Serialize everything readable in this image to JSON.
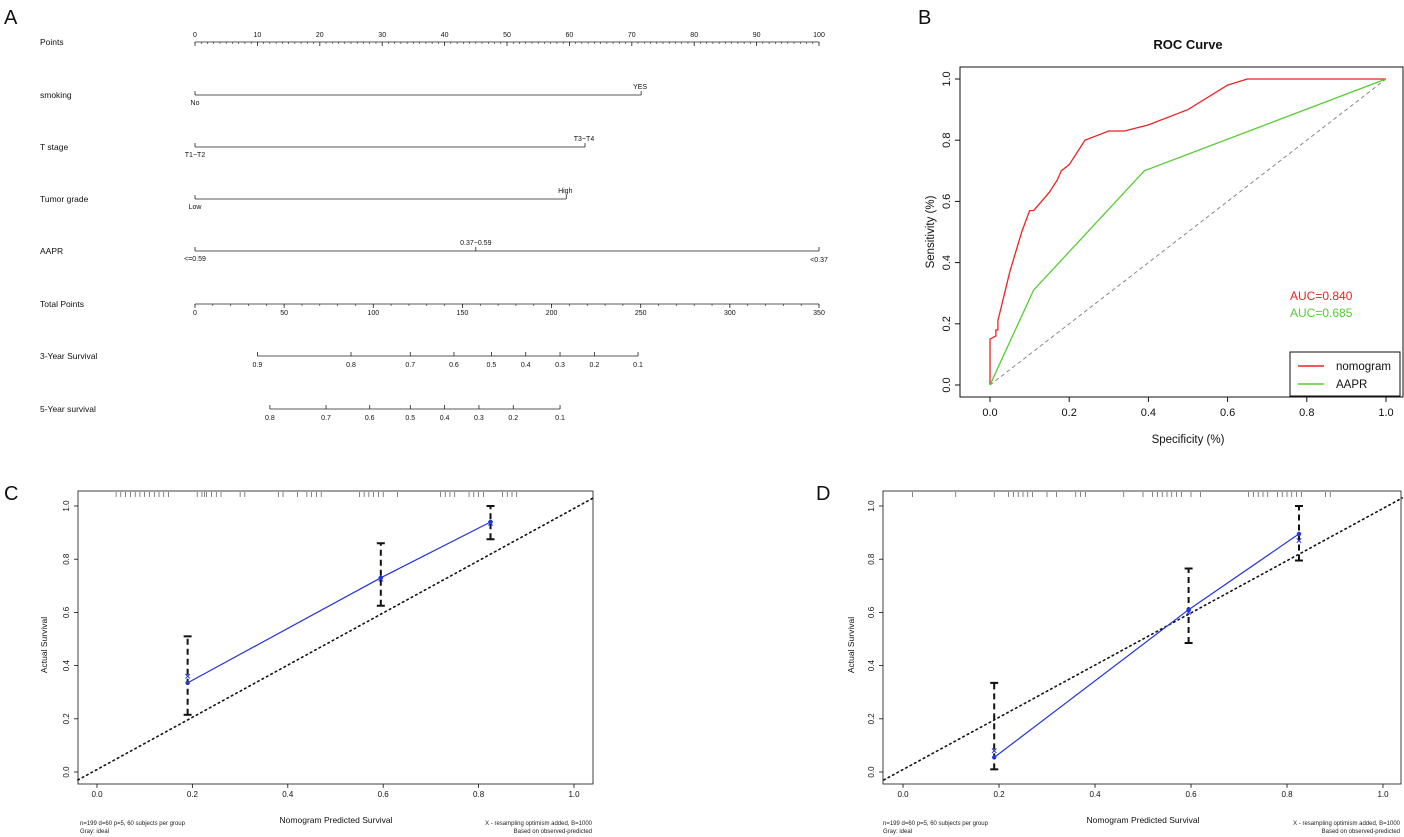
{
  "panels": {
    "a": "A",
    "b": "B",
    "c": "C",
    "d": "D"
  },
  "nomogram": {
    "rows": [
      {
        "label": "Points",
        "type": "scale",
        "ticks": [
          "0",
          "10",
          "20",
          "30",
          "40",
          "50",
          "60",
          "70",
          "80",
          "90",
          "100"
        ],
        "tick_values": [
          0,
          10,
          20,
          30,
          40,
          50,
          60,
          70,
          80,
          90,
          100
        ],
        "minor_step": 1,
        "range": [
          0,
          100
        ]
      },
      {
        "label": "smoking",
        "type": "var",
        "low": "No",
        "high": "YES",
        "low_points": 0,
        "high_points": 71.5
      },
      {
        "label": "T stage",
        "type": "var",
        "low": "T1~T2",
        "high": "T3~T4",
        "low_points": 0,
        "high_points": 62.5
      },
      {
        "label": "Tumor grade",
        "type": "var",
        "low": "Low",
        "high": "High",
        "low_points": 0,
        "high_points": 59.5
      },
      {
        "label": "AAPR",
        "type": "var3",
        "low": "<=0.59",
        "mid": "0.37~0.59",
        "high": "<0.37",
        "low_points": 0,
        "mid_points": 45,
        "high_points": 100
      },
      {
        "label": "Total Points",
        "type": "scale",
        "ticks": [
          "0",
          "50",
          "100",
          "150",
          "200",
          "250",
          "300",
          "350"
        ],
        "tick_values": [
          0,
          50,
          100,
          150,
          200,
          250,
          300,
          350
        ],
        "minor_step": 10,
        "range": [
          0,
          350
        ]
      },
      {
        "label": "3-Year Survival",
        "type": "surv",
        "ticks": [
          "0.9",
          "0.8",
          "0.7",
          "0.6",
          "0.5",
          "0.4",
          "0.3",
          "0.2",
          "0.1"
        ],
        "tick_points": [
          10,
          25,
          34.5,
          41.5,
          47.5,
          53,
          58.5,
          64,
          71
        ]
      },
      {
        "label": "5-Year survival",
        "type": "surv",
        "ticks": [
          "0.8",
          "0.7",
          "0.6",
          "0.5",
          "0.4",
          "0.3",
          "0.2",
          "0.1"
        ],
        "tick_points": [
          12,
          21,
          28,
          34.5,
          40,
          45.5,
          51,
          58.5
        ]
      }
    ]
  },
  "chart_data": [
    {
      "type": "line",
      "title": "ROC Curve",
      "xlabel": "Specificity (%)",
      "ylabel": "Sensitivity (%)",
      "xlim": [
        0,
        1
      ],
      "ylim": [
        0,
        1
      ],
      "xticks": [
        "0.0",
        "0.2",
        "0.4",
        "0.6",
        "0.8",
        "1.0"
      ],
      "yticks": [
        "0.0",
        "0.2",
        "0.4",
        "0.6",
        "0.8",
        "1.0"
      ],
      "tick_values": [
        0,
        0.2,
        0.4,
        0.6,
        0.8,
        1.0
      ],
      "series": [
        {
          "name": "nomogram",
          "color": "#ee2222",
          "x": [
            0,
            0,
            0.015,
            0.015,
            0.02,
            0.02,
            0.05,
            0.08,
            0.1,
            0.11,
            0.15,
            0.17,
            0.18,
            0.2,
            0.24,
            0.3,
            0.34,
            0.4,
            0.5,
            0.6,
            0.65,
            0.7,
            1.0
          ],
          "y": [
            0,
            0.15,
            0.16,
            0.18,
            0.18,
            0.21,
            0.37,
            0.5,
            0.57,
            0.57,
            0.63,
            0.67,
            0.7,
            0.72,
            0.8,
            0.83,
            0.83,
            0.85,
            0.9,
            0.98,
            1.0,
            1.0,
            1.0
          ]
        },
        {
          "name": "AAPR",
          "color": "#55cc33",
          "x": [
            0,
            0.11,
            0.39,
            1.0
          ],
          "y": [
            0,
            0.31,
            0.7,
            1.0
          ]
        }
      ],
      "reference_line": {
        "x": [
          0,
          1
        ],
        "y": [
          0,
          1
        ]
      },
      "annotations": [
        {
          "text": "AUC=0.840",
          "color": "#ee2222"
        },
        {
          "text": "AUC=0.685",
          "color": "#55cc33"
        }
      ],
      "legend": {
        "position": "bottom-right",
        "entries": [
          "nomogram",
          "AAPR"
        ]
      }
    },
    {
      "type": "line",
      "title": "",
      "xlabel": "Nomogram Predicted Survival",
      "ylabel": "Actual Survival",
      "xlim": [
        -0.04,
        1.04
      ],
      "ylim": [
        -0.03,
        1.03
      ],
      "xticks": [
        "0.0",
        "0.2",
        "0.4",
        "0.6",
        "0.8",
        "1.0"
      ],
      "yticks": [
        "0.0",
        "0.2",
        "0.4",
        "0.6",
        "0.8",
        "1.0"
      ],
      "tick_values": [
        0,
        0.2,
        0.4,
        0.6,
        0.8,
        1.0
      ],
      "series": [
        {
          "name": "observed",
          "color": "#2233dd",
          "x": [
            0.19,
            0.595,
            0.825
          ],
          "y": [
            0.335,
            0.73,
            0.94
          ]
        }
      ],
      "corrected_y": [
        0.36,
        0.725,
        0.935
      ],
      "errorbars": [
        {
          "x": 0.19,
          "low": 0.215,
          "high": 0.51
        },
        {
          "x": 0.595,
          "low": 0.625,
          "high": 0.86
        },
        {
          "x": 0.825,
          "low": 0.875,
          "high": 1.0
        }
      ],
      "rug": [
        0.04,
        0.05,
        0.06,
        0.07,
        0.08,
        0.09,
        0.1,
        0.11,
        0.12,
        0.13,
        0.14,
        0.15,
        0.21,
        0.22,
        0.225,
        0.23,
        0.24,
        0.25,
        0.26,
        0.3,
        0.31,
        0.38,
        0.39,
        0.42,
        0.44,
        0.45,
        0.46,
        0.47,
        0.55,
        0.56,
        0.57,
        0.58,
        0.59,
        0.6,
        0.63,
        0.72,
        0.73,
        0.74,
        0.75,
        0.78,
        0.79,
        0.8,
        0.81,
        0.85,
        0.86,
        0.87,
        0.88
      ],
      "footnote_left": [
        "n=199 d=60 p=5, 60 subjects per group",
        "Gray: ideal"
      ],
      "footnote_right": [
        "X - resampling optimism added, B=1000",
        "Based on observed-predicted"
      ]
    },
    {
      "type": "line",
      "title": "",
      "xlabel": "Nomogram Predicted Survival",
      "ylabel": "Actual Survival",
      "xlim": [
        -0.04,
        1.04
      ],
      "ylim": [
        -0.03,
        1.03
      ],
      "xticks": [
        "0.0",
        "0.2",
        "0.4",
        "0.6",
        "0.8",
        "1.0"
      ],
      "yticks": [
        "0.0",
        "0.2",
        "0.4",
        "0.6",
        "0.8",
        "1.0"
      ],
      "tick_values": [
        0,
        0.2,
        0.4,
        0.6,
        0.8,
        1.0
      ],
      "series": [
        {
          "name": "observed",
          "color": "#2233dd",
          "x": [
            0.19,
            0.595,
            0.825
          ],
          "y": [
            0.055,
            0.61,
            0.895
          ]
        }
      ],
      "corrected_y": [
        0.08,
        0.6,
        0.87
      ],
      "errorbars": [
        {
          "x": 0.19,
          "low": 0.01,
          "high": 0.335
        },
        {
          "x": 0.595,
          "low": 0.485,
          "high": 0.765
        },
        {
          "x": 0.825,
          "low": 0.795,
          "high": 1.0
        }
      ],
      "rug": [
        0.02,
        0.11,
        0.19,
        0.22,
        0.23,
        0.24,
        0.25,
        0.26,
        0.27,
        0.3,
        0.32,
        0.36,
        0.37,
        0.38,
        0.46,
        0.5,
        0.52,
        0.53,
        0.54,
        0.55,
        0.56,
        0.57,
        0.58,
        0.6,
        0.62,
        0.72,
        0.73,
        0.74,
        0.75,
        0.76,
        0.78,
        0.79,
        0.8,
        0.81,
        0.82,
        0.83,
        0.88,
        0.89
      ],
      "footnote_left": [
        "n=199 d=60 p=5, 60 subjects per group",
        "Gray: ideal"
      ],
      "footnote_right": [
        "X - resampling optimism added, B=1000",
        "Based on observed-predicted"
      ]
    }
  ]
}
